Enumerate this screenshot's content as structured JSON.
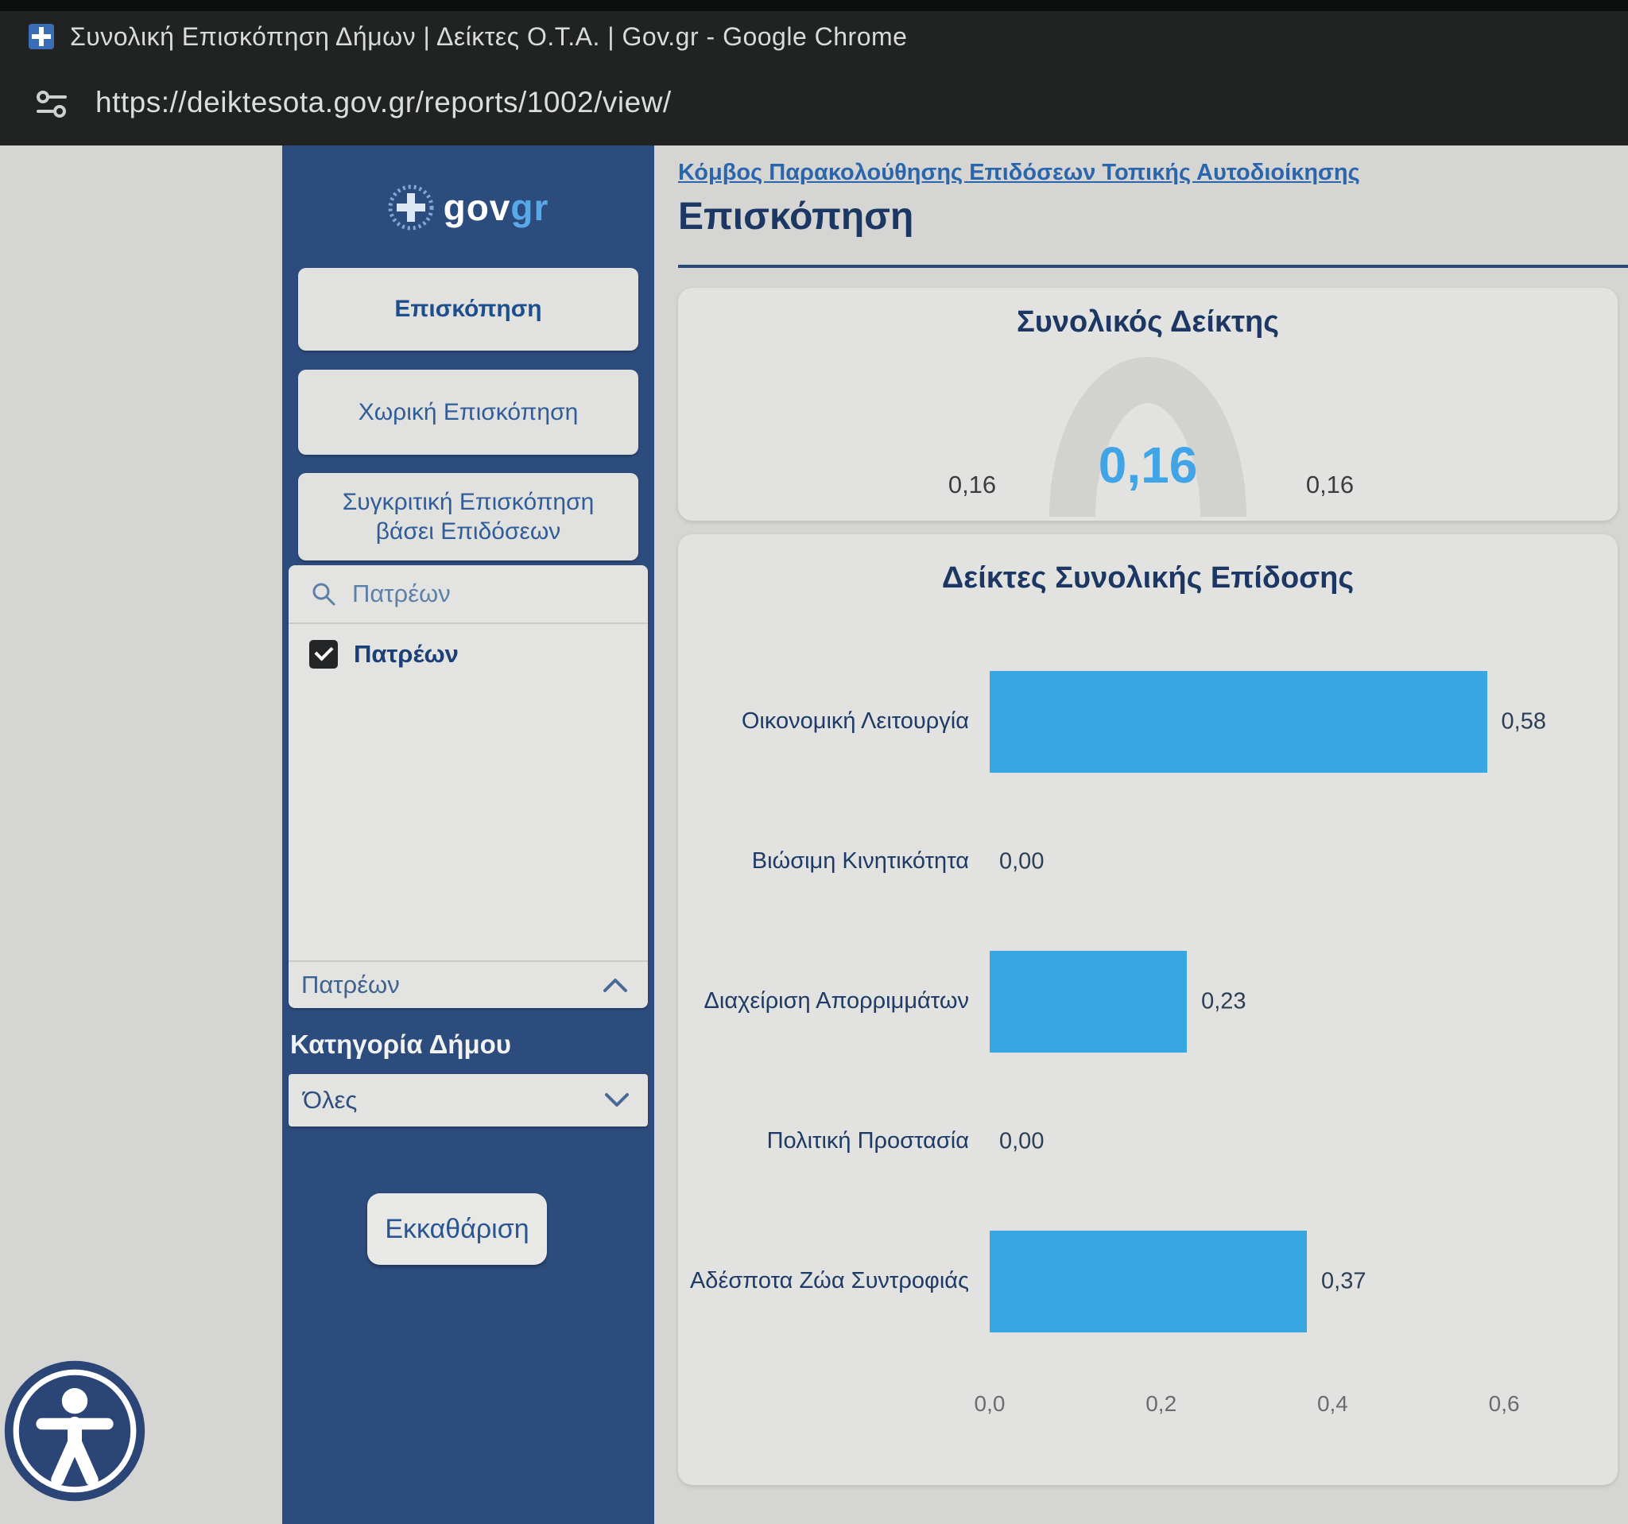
{
  "window": {
    "title": "Συνολική Επισκόπηση Δήμων | Δείκτες Ο.Τ.Α. | Gov.gr - Google Chrome",
    "url": "https://deiktesota.gov.gr/reports/1002/view/"
  },
  "sidebar": {
    "logo_main": "gov",
    "logo_accent": "gr",
    "nav_overview": "Επισκόπηση",
    "nav_spatial": "Χωρική Επισκόπηση",
    "nav_comparative": "Συγκριτική Επισκόπηση βάσει Επιδόσεων",
    "filter": {
      "search_value": "Πατρέων",
      "option_label": "Πατρέων",
      "option_checked": true,
      "collapsed_label": "Πατρέων"
    },
    "category_label": "Κατηγορία Δήμου",
    "category_value": "Όλες",
    "clear_label": "Εκκαθάριση"
  },
  "main": {
    "portal_link": "Κόμβος Παρακολούθησης Επιδόσεων Τοπικής Αυτοδιοίκησης",
    "page_title": "Επισκόπηση"
  },
  "chart_data": [
    {
      "type": "gauge",
      "title": "Συνολικός Δείκτης",
      "value": 0.16,
      "display_value": "0,16",
      "min_label": "0,16",
      "max_label": "0,16",
      "value_color": "#41a4e6",
      "arc_color": "#d2d2cf"
    },
    {
      "type": "bar",
      "orientation": "horizontal",
      "title": "Δείκτες Συνολικής Επίδοσης",
      "categories": [
        "Οικονομική Λειτουργία",
        "Βιώσιμη Κινητικότητα",
        "Διαχείριση Απορριμμάτων",
        "Πολιτική Προστασία",
        "Αδέσποτα Ζώα Συντροφιάς"
      ],
      "values": [
        0.58,
        0.0,
        0.23,
        0.0,
        0.37
      ],
      "value_labels": [
        "0,58",
        "0,00",
        "0,23",
        "0,00",
        "0,37"
      ],
      "xlim": [
        0,
        0.6
      ],
      "x_tick_values": [
        0,
        0.2,
        0.4,
        0.6
      ],
      "x_tick_labels": [
        "0,0",
        "0,2",
        "0,4",
        "0,6"
      ],
      "grid": false,
      "legend": false,
      "bar_color": "#38a6e0"
    }
  ],
  "colors": {
    "sidebar_bg": "#2d4c7e",
    "bar_blue": "#38a6e0",
    "gauge_value_blue": "#41a4e6",
    "link_blue": "#2b66ad",
    "heading_navy": "#1c3763"
  }
}
